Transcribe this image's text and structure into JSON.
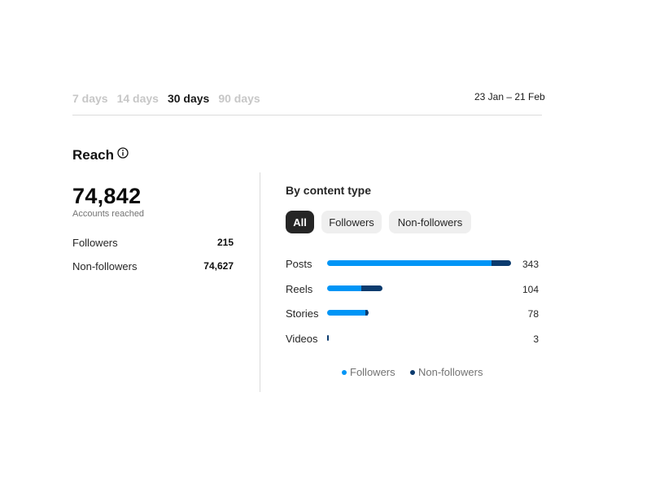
{
  "tabs": [
    {
      "label": "7 days",
      "active": false
    },
    {
      "label": "14 days",
      "active": false
    },
    {
      "label": "30 days",
      "active": true
    },
    {
      "label": "90 days",
      "active": false
    }
  ],
  "date_range": "23 Jan – 21 Feb",
  "reach": {
    "title": "Reach",
    "total": "74,842",
    "total_label": "Accounts reached",
    "followers_label": "Followers",
    "followers_value": "215",
    "non_followers_label": "Non-followers",
    "non_followers_value": "74,627"
  },
  "content_type": {
    "title": "By content type",
    "filters": [
      {
        "label": "All",
        "active": true
      },
      {
        "label": "Followers",
        "active": false
      },
      {
        "label": "Non-followers",
        "active": false
      }
    ],
    "legend": {
      "followers": "Followers",
      "non_followers": "Non-followers"
    },
    "colors": {
      "followers": "#0095f6",
      "non_followers": "#0c3b6e"
    }
  },
  "chart_data": {
    "type": "bar",
    "orientation": "horizontal",
    "stacked": true,
    "categories": [
      "Posts",
      "Reels",
      "Stories",
      "Videos"
    ],
    "totals": [
      343,
      104,
      78,
      3
    ],
    "series": [
      {
        "name": "Followers",
        "values": [
          307,
          64,
          72,
          0
        ]
      },
      {
        "name": "Non-followers",
        "values": [
          36,
          40,
          6,
          3
        ]
      }
    ],
    "xlim": [
      0,
      343
    ],
    "legend": "bottom"
  }
}
